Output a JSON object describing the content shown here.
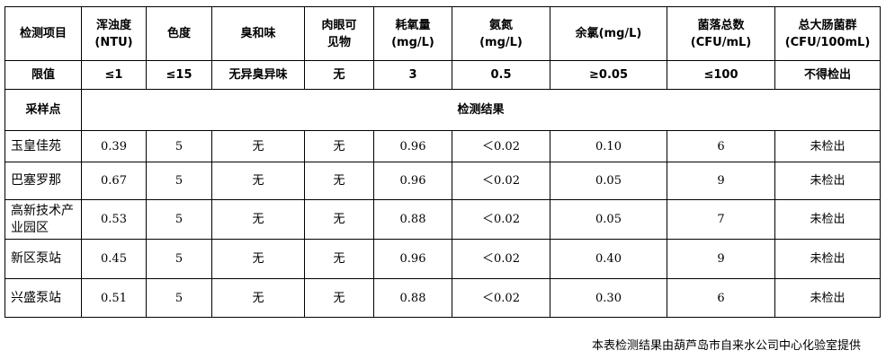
{
  "header": [
    "检测项目",
    "浑浊度\n(NTU)",
    "色度",
    "臭和味",
    "肉眼可\n见物",
    "耗氧量\n(mg/L)",
    "氨氮\n(mg/L)",
    "余氯(mg/L)",
    "菌落总数\n(CFU/mL)",
    "总大肠菌群\n(CFU/100mL)"
  ],
  "limits": [
    "限值",
    "≤1",
    "≤15",
    "无异臭异味",
    "无",
    "3",
    "0.5",
    "≥0.05",
    "≤100",
    "不得检出"
  ],
  "section": {
    "left": "采样点",
    "right": "检测结果"
  },
  "rows": [
    [
      "玉皇佳苑",
      "0.39",
      "5",
      "无",
      "无",
      "0.96",
      "＜0.02",
      "0.10",
      "6",
      "未检出"
    ],
    [
      "巴塞罗那",
      "0.67",
      "5",
      "无",
      "无",
      "0.96",
      "＜0.02",
      "0.05",
      "9",
      "未检出"
    ],
    [
      "高新技术产业园区",
      "0.53",
      "5",
      "无",
      "无",
      "0.88",
      "＜0.02",
      "0.05",
      "7",
      "未检出"
    ],
    [
      "新区泵站",
      "0.45",
      "5",
      "无",
      "无",
      "0.96",
      "＜0.02",
      "0.40",
      "9",
      "未检出"
    ],
    [
      "兴盛泵站",
      "0.51",
      "5",
      "无",
      "无",
      "0.88",
      "＜0.02",
      "0.30",
      "6",
      "未检出"
    ]
  ],
  "footer": "本表检测结果由葫芦岛市自来水公司中心化验室提供"
}
